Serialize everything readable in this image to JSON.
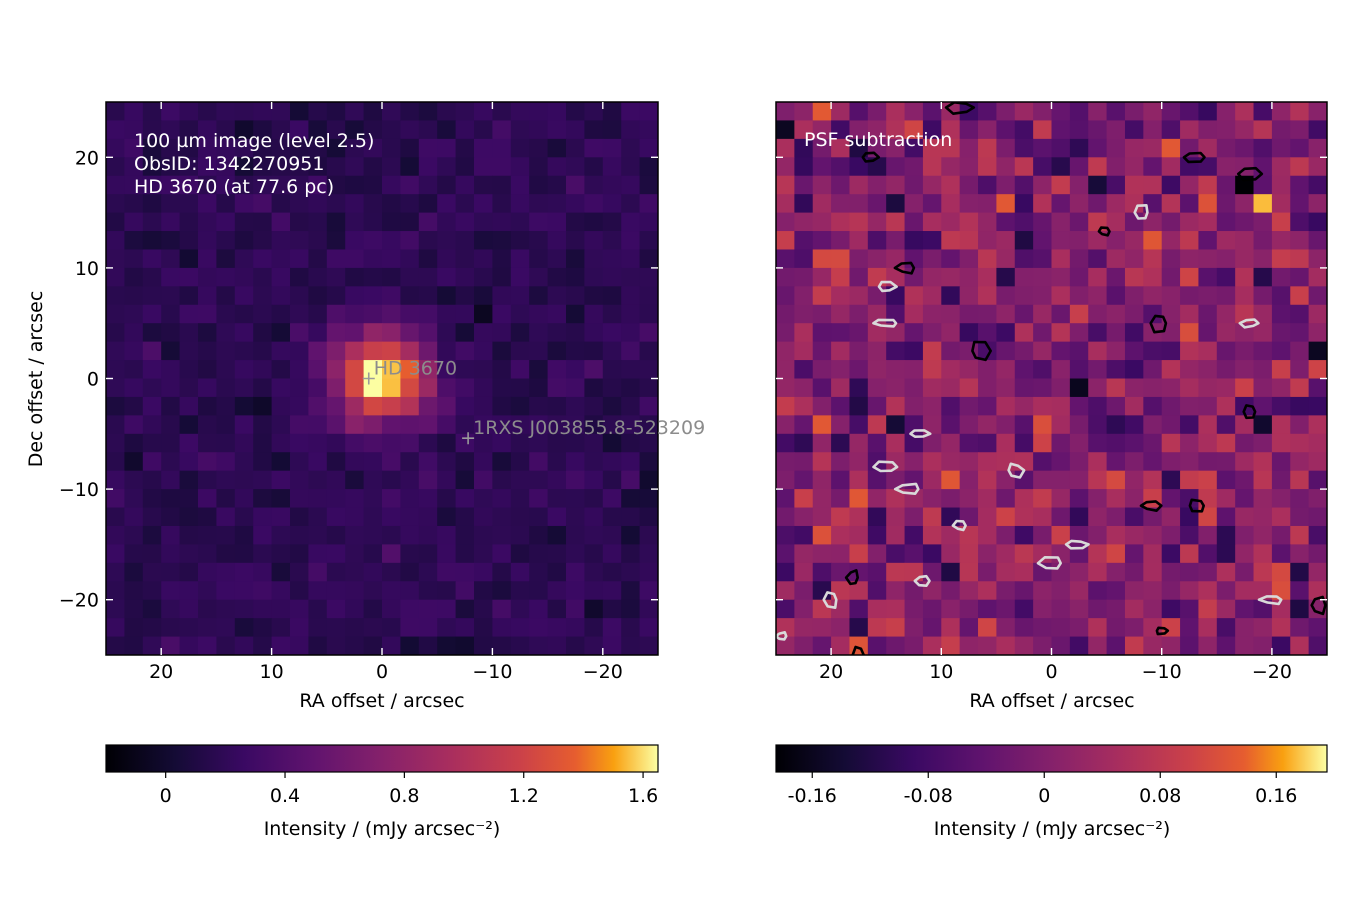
{
  "chart_data": [
    {
      "type": "heatmap",
      "title": "",
      "annotation_lines": [
        "100 µm image (level 2.5)",
        "ObsID: 1342270951",
        "HD 3670 (at 77.6 pc)"
      ],
      "xlabel": "RA offset / arcsec",
      "ylabel": "Dec offset / arcsec",
      "xlim": [
        25,
        -25
      ],
      "ylim": [
        -25,
        25
      ],
      "xticks": [
        20,
        10,
        0,
        -10,
        -20
      ],
      "yticks": [
        20,
        10,
        0,
        -10,
        -20
      ],
      "xtick_labels": [
        "20",
        "10",
        "0",
        "−10",
        "−20"
      ],
      "ytick_labels": [
        "20",
        "10",
        "0",
        "−10",
        "−20"
      ],
      "colormap": "inferno",
      "color_range": [
        -0.2,
        1.65
      ],
      "source_peak": {
        "x": 0,
        "y": 0,
        "peak": 1.55,
        "fwhm_arcsec": 7
      },
      "background_level": 0.18,
      "markers": [
        {
          "label": "HD   3670",
          "x": 1.2,
          "y": 0
        },
        {
          "label": "1RXS J003855.8-523209",
          "x": -7.8,
          "y": -5.4
        }
      ],
      "colorbar": {
        "label": "Intensity / (mJy arcsec⁻²)",
        "ticks": [
          0,
          0.4,
          0.8,
          1.2,
          1.6
        ],
        "tick_labels": [
          "0",
          "0.4",
          "0.8",
          "1.2",
          "1.6"
        ]
      }
    },
    {
      "type": "heatmap",
      "title": "",
      "annotation_lines": [
        "PSF subtraction"
      ],
      "xlabel": "RA offset / arcsec",
      "ylabel": "",
      "xlim": [
        25,
        -25
      ],
      "ylim": [
        -25,
        25
      ],
      "xticks": [
        20,
        10,
        0,
        -10,
        -20
      ],
      "xtick_labels": [
        "20",
        "10",
        "0",
        "−10",
        "−20"
      ],
      "colormap": "inferno",
      "color_range": [
        -0.185,
        0.195
      ],
      "residual_noise": "random residuals around 0",
      "positive_contours": [
        {
          "x": 8.2,
          "y": 24.5
        },
        {
          "x": 16.5,
          "y": 20
        },
        {
          "x": -13,
          "y": 20
        },
        {
          "x": -18,
          "y": 18.5
        },
        {
          "x": -4.8,
          "y": 13.3
        },
        {
          "x": 13.2,
          "y": 10
        },
        {
          "x": -9.8,
          "y": 5
        },
        {
          "x": 6.5,
          "y": 2.5
        },
        {
          "x": -18,
          "y": -3
        },
        {
          "x": -9,
          "y": -11.5
        },
        {
          "x": -13.2,
          "y": -11.5
        },
        {
          "x": 18,
          "y": -18
        },
        {
          "x": -10,
          "y": -22.8
        },
        {
          "x": -24.2,
          "y": -20.5
        },
        {
          "x": 17.5,
          "y": -25
        }
      ],
      "negative_contours": [
        {
          "x": -8.2,
          "y": 15
        },
        {
          "x": 15,
          "y": 5
        },
        {
          "x": -18,
          "y": 5
        },
        {
          "x": 12,
          "y": -5
        },
        {
          "x": 15,
          "y": -8
        },
        {
          "x": 3.3,
          "y": -8.3
        },
        {
          "x": 13,
          "y": -10
        },
        {
          "x": 8.3,
          "y": -13.3
        },
        {
          "x": -2.3,
          "y": -15
        },
        {
          "x": 0,
          "y": -16.7
        },
        {
          "x": 11.7,
          "y": -18.3
        },
        {
          "x": 20,
          "y": -20
        },
        {
          "x": -20,
          "y": -20
        },
        {
          "x": 24.5,
          "y": -23.3
        },
        {
          "x": 15,
          "y": 8.3
        }
      ],
      "colorbar": {
        "label": "Intensity / (mJy arcsec⁻²)",
        "ticks": [
          -0.16,
          -0.08,
          0,
          0.08,
          0.16
        ],
        "tick_labels": [
          "-0.16",
          "-0.08",
          "0",
          "0.08",
          "0.16"
        ]
      }
    }
  ]
}
